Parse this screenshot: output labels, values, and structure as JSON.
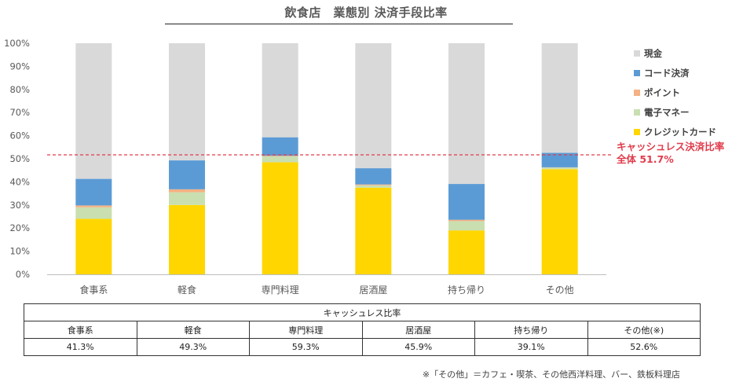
{
  "chart_data": {
    "type": "bar",
    "stacked": true,
    "title": "飲食店　業態別 決済手段比率",
    "categories": [
      "食事系",
      "軽食",
      "専門料理",
      "居酒屋",
      "持ち帰り",
      "その他"
    ],
    "ylim": [
      0,
      100
    ],
    "yticks": [
      "0%",
      "10%",
      "20%",
      "30%",
      "40%",
      "50%",
      "60%",
      "70%",
      "80%",
      "90%",
      "100%"
    ],
    "series": [
      {
        "name": "クレジットカード",
        "color": "#FFD600",
        "values": [
          24,
          30,
          48.5,
          37.5,
          19,
          45.5
        ]
      },
      {
        "name": "電子マネー",
        "color": "#C9DFB0",
        "values": [
          5,
          5.5,
          2.5,
          1,
          4,
          0.7
        ]
      },
      {
        "name": "ポイント",
        "color": "#F4B183",
        "values": [
          0.8,
          1.3,
          0.3,
          0.4,
          0.6,
          0.1
        ]
      },
      {
        "name": "コード決済",
        "color": "#5B9BD5",
        "values": [
          11.5,
          12.5,
          8,
          7,
          15.5,
          6.3
        ]
      },
      {
        "name": "現金",
        "color": "#D9D9D9",
        "values": [
          58.7,
          50.7,
          40.7,
          54.1,
          60.9,
          47.4
        ]
      }
    ],
    "legend_order": [
      "現金",
      "コード決済",
      "ポイント",
      "電子マネー",
      "クレジットカード"
    ],
    "legend_position": "right",
    "reference_line": {
      "value": 51.7,
      "color": "#E03C4C",
      "label_line1": "キャッシュレス決済比率",
      "label_line2": "全体 51.7%"
    },
    "grid": false
  },
  "table": {
    "header": "キャッシュレス比率",
    "columns": [
      "食事系",
      "軽食",
      "専門料理",
      "居酒屋",
      "持ち帰り",
      "その他(※)"
    ],
    "values": [
      "41.3%",
      "49.3%",
      "59.3%",
      "45.9%",
      "39.1%",
      "52.6%"
    ]
  },
  "footnote": "※「その他」＝カフェ・喫茶、その他西洋料理、バー、鉄板料理店"
}
